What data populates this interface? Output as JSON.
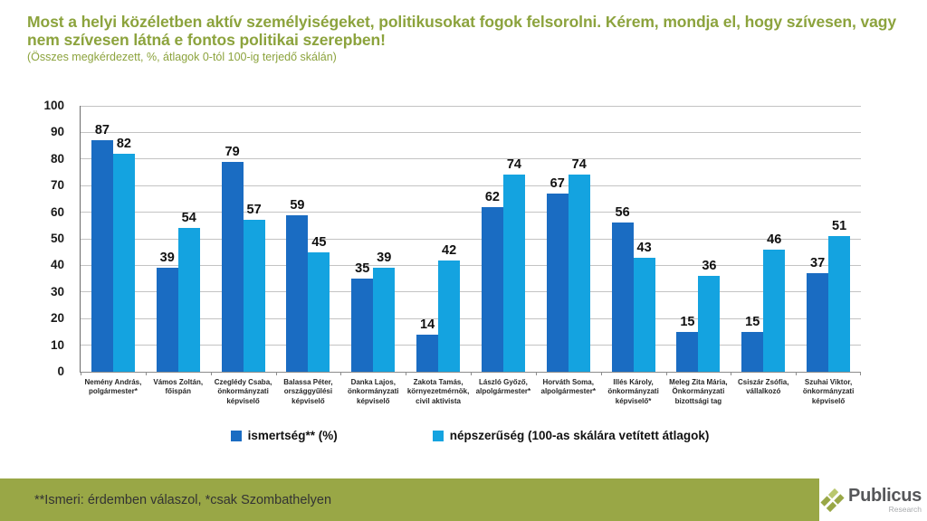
{
  "theme": {
    "title_green": "#8ca33d",
    "band_green": "#99a746",
    "light_green": "#b9c76e",
    "dark_blue": "#1a6cc2",
    "light_blue": "#14a3e0"
  },
  "header": {
    "title": "Most a helyi közéletben aktív személyiségeket, politikusokat fogok felsorolni. Kérem, mondja el, hogy szívesen, vagy nem szívesen látná e fontos politikai szerepben!",
    "subtitle": "(Összes megkérdezett, %, átlagok 0-tól 100-ig terjedő skálán)"
  },
  "chart_data": {
    "type": "bar",
    "title": "Most a helyi közéletben aktív személyiségeket, politikusokat fogok felsorolni. Kérem, mondja el, hogy szívesen, vagy nem szívesen látná e fontos politikai szerepben!",
    "subtitle": "(Összes megkérdezett, %, átlagok 0-tól 100-ig terjedő skálán)",
    "xlabel": "",
    "ylabel": "",
    "ylim": [
      0,
      100
    ],
    "ytick_step": 10,
    "grid": true,
    "legend_position": "bottom",
    "categories": [
      "Nemény András, polgármester*",
      "Vámos Zoltán, főispán",
      "Czeglédy Csaba, önkormányzati képviselő",
      "Balassa Péter, országgyűlési képviselő",
      "Danka Lajos, önkormányzati képviselő",
      "Zakota Tamás, környezetmérnök, civil aktivista",
      "László Győző, alpolgármester*",
      "Horváth Soma, alpolgármester*",
      "Illés Károly, önkormányzati képviselő*",
      "Meleg Zita Mária, Önkormányzati bizottsági tag",
      "Csiszár Zsófia, vállalkozó",
      "Szuhai Viktor, önkormányzati képviselő"
    ],
    "series": [
      {
        "name": "ismertség** (%)",
        "color": "#1a6cc2",
        "values": [
          87,
          39,
          79,
          59,
          35,
          14,
          62,
          67,
          56,
          15,
          15,
          37
        ]
      },
      {
        "name": "népszerűség (100-as skálára vetített átlagok)",
        "color": "#14a3e0",
        "values": [
          82,
          54,
          57,
          45,
          39,
          42,
          74,
          74,
          43,
          36,
          46,
          51
        ]
      }
    ]
  },
  "footer": {
    "note": "**Ismeri: érdemben válaszol, *csak Szombathelyen"
  },
  "logo": {
    "name": "Publicus",
    "sub": "Research"
  }
}
